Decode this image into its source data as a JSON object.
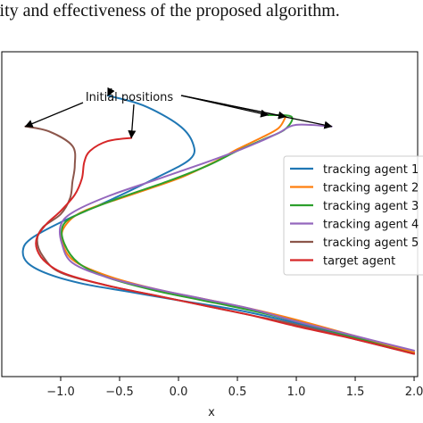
{
  "caption": "lity and effectiveness of the proposed algorithm.",
  "chart_data": {
    "type": "line",
    "title": "",
    "xlabel": "x",
    "ylabel": "",
    "xlim": [
      -1.5,
      2.03
    ],
    "ylim": [
      -1.0,
      1.0
    ],
    "xticks": [
      -1.0,
      -0.5,
      0.0,
      0.5,
      1.0,
      1.5,
      2.0
    ],
    "xtick_labels": [
      "−1.0",
      "−0.5",
      "0.0",
      "0.5",
      "1.0",
      "1.5",
      "2.0"
    ],
    "grid": false,
    "legend_position": "right",
    "annotation": {
      "text": "Initial positions"
    },
    "series": [
      {
        "name": "tracking agent 1",
        "color": "#1f77b4",
        "x": [
          -0.6,
          -0.3,
          0.0,
          0.12,
          0.1,
          -0.2,
          -0.6,
          -1.0,
          -1.25,
          -1.32,
          -1.28,
          -1.1,
          -0.8,
          -0.4,
          0.0,
          0.5,
          1.0,
          1.5,
          2.0
        ],
        "y": [
          0.73,
          0.67,
          0.55,
          0.44,
          0.34,
          0.22,
          0.08,
          -0.05,
          -0.15,
          -0.22,
          -0.3,
          -0.37,
          -0.43,
          -0.48,
          -0.53,
          -0.59,
          -0.67,
          -0.76,
          -0.85
        ]
      },
      {
        "name": "tracking agent 2",
        "color": "#ff7f0e",
        "x": [
          0.91,
          0.85,
          0.7,
          0.5,
          0.3,
          0.0,
          -0.4,
          -0.8,
          -0.95,
          -0.99,
          -0.9,
          -0.6,
          -0.2,
          0.2,
          0.6,
          1.0,
          1.5,
          2.0
        ],
        "y": [
          0.6,
          0.53,
          0.47,
          0.4,
          0.32,
          0.22,
          0.12,
          0.02,
          -0.06,
          -0.15,
          -0.28,
          -0.38,
          -0.46,
          -0.52,
          -0.58,
          -0.65,
          -0.75,
          -0.85
        ]
      },
      {
        "name": "tracking agent 3",
        "color": "#2ca02c",
        "x": [
          0.76,
          0.96,
          0.9,
          0.72,
          0.5,
          0.25,
          -0.1,
          -0.5,
          -0.85,
          -0.98,
          -0.97,
          -0.85,
          -0.6,
          -0.2,
          0.2,
          0.6,
          1.0,
          1.5,
          2.0
        ],
        "y": [
          0.61,
          0.6,
          0.52,
          0.46,
          0.39,
          0.3,
          0.2,
          0.1,
          0.0,
          -0.07,
          -0.18,
          -0.3,
          -0.39,
          -0.47,
          -0.53,
          -0.59,
          -0.66,
          -0.76,
          -0.86
        ]
      },
      {
        "name": "tracking agent 4",
        "color": "#9467bd",
        "x": [
          1.3,
          1.0,
          0.85,
          0.7,
          0.5,
          0.2,
          -0.2,
          -0.6,
          -0.9,
          -1.0,
          -0.99,
          -0.9,
          -0.6,
          -0.2,
          0.2,
          0.6,
          1.0,
          1.5,
          2.0
        ],
        "y": [
          0.54,
          0.55,
          0.5,
          0.45,
          0.39,
          0.31,
          0.21,
          0.11,
          0.01,
          -0.07,
          -0.18,
          -0.3,
          -0.39,
          -0.46,
          -0.52,
          -0.58,
          -0.66,
          -0.75,
          -0.84
        ]
      },
      {
        "name": "tracking agent 5",
        "color": "#8c564b",
        "x": [
          -1.3,
          -1.1,
          -0.9,
          -0.88,
          -0.9,
          -0.92,
          -1.0,
          -1.15,
          -1.2,
          -1.15,
          -1.0,
          -0.6,
          -0.2,
          0.2,
          0.6,
          1.0,
          1.5,
          2.0
        ],
        "y": [
          0.54,
          0.51,
          0.42,
          0.3,
          0.2,
          0.1,
          0.0,
          -0.08,
          -0.16,
          -0.26,
          -0.36,
          -0.44,
          -0.5,
          -0.56,
          -0.62,
          -0.68,
          -0.77,
          -0.86
        ]
      },
      {
        "name": "target agent",
        "color": "#d62728",
        "x": [
          -0.4,
          -0.6,
          -0.75,
          -0.8,
          -0.82,
          -0.88,
          -1.0,
          -1.12,
          -1.2,
          -1.2,
          -1.12,
          -0.95,
          -0.6,
          -0.2,
          0.2,
          0.6,
          1.0,
          1.5,
          2.0
        ],
        "y": [
          0.47,
          0.45,
          0.39,
          0.32,
          0.22,
          0.12,
          0.02,
          -0.06,
          -0.14,
          -0.22,
          -0.3,
          -0.37,
          -0.44,
          -0.5,
          -0.56,
          -0.62,
          -0.69,
          -0.77,
          -0.86
        ]
      }
    ]
  }
}
